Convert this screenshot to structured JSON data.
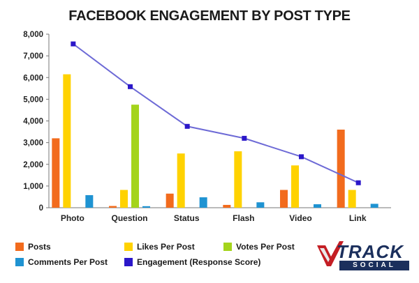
{
  "chart_data": {
    "type": "bar",
    "title": "FACEBOOK ENGAGEMENT BY POST TYPE",
    "categories": [
      "Photo",
      "Question",
      "Status",
      "Flash",
      "Video",
      "Link"
    ],
    "ylim": [
      0,
      8000
    ],
    "yticks": [
      "0",
      "1,000",
      "2,000",
      "3,000",
      "4,000",
      "5,000",
      "6,000",
      "7,000",
      "8,000"
    ],
    "grid": false,
    "legend_position": "bottom",
    "series": [
      {
        "name": "Posts",
        "type": "bar",
        "color": "#f26b1d",
        "values": [
          3200,
          80,
          650,
          130,
          820,
          3600
        ]
      },
      {
        "name": "Likes Per Post",
        "type": "bar",
        "color": "#ffd200",
        "values": [
          6150,
          820,
          2500,
          2600,
          1950,
          820
        ]
      },
      {
        "name": "Votes Per Post",
        "type": "bar",
        "color": "#a4d41c",
        "values": [
          0,
          4750,
          0,
          0,
          0,
          0
        ]
      },
      {
        "name": "Comments Per Post",
        "type": "bar",
        "color": "#1f93d2",
        "values": [
          580,
          70,
          480,
          250,
          160,
          180
        ]
      },
      {
        "name": "Engagement (Response Score)",
        "type": "line",
        "color": "#2b17c9",
        "values": [
          7550,
          5580,
          3750,
          3200,
          2350,
          1150
        ]
      }
    ]
  },
  "legend": {
    "items": [
      {
        "label": "Posts",
        "color": "#f26b1d"
      },
      {
        "label": "Likes Per Post",
        "color": "#ffd200"
      },
      {
        "label": "Votes Per Post",
        "color": "#a4d41c"
      },
      {
        "label": "Comments Per Post",
        "color": "#1f93d2"
      },
      {
        "label": "Engagement (Response Score)",
        "color": "#2b17c9"
      }
    ]
  },
  "logo": {
    "word1": "TRACK",
    "word2": "SOCIAL"
  }
}
